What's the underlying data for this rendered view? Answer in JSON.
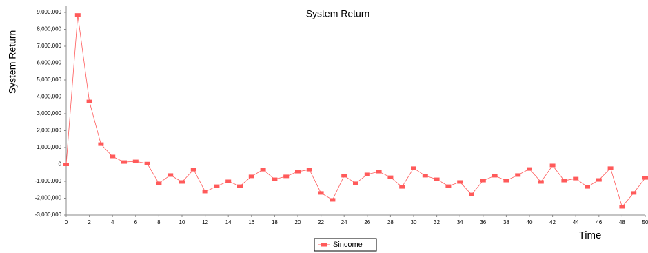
{
  "chart_data": {
    "type": "line",
    "title": "System Return",
    "x_label": "Time",
    "y_label": "System Return",
    "x": [
      0,
      1,
      2,
      3,
      4,
      5,
      6,
      7,
      8,
      9,
      10,
      11,
      12,
      13,
      14,
      15,
      16,
      17,
      18,
      19,
      20,
      21,
      22,
      23,
      24,
      25,
      26,
      27,
      28,
      29,
      30,
      31,
      32,
      33,
      34,
      35,
      36,
      37,
      38,
      39,
      40,
      41,
      42,
      43,
      44,
      45,
      46,
      47,
      48,
      49,
      50
    ],
    "series": [
      {
        "name": "Sincome",
        "color": "#ff5a5a",
        "values": [
          0,
          8850000,
          3730000,
          1200000,
          470000,
          140000,
          180000,
          50000,
          -1120000,
          -630000,
          -1040000,
          -310000,
          -1610000,
          -1290000,
          -1000000,
          -1290000,
          -710000,
          -310000,
          -880000,
          -710000,
          -430000,
          -310000,
          -1690000,
          -2100000,
          -670000,
          -1120000,
          -590000,
          -430000,
          -760000,
          -1330000,
          -220000,
          -670000,
          -880000,
          -1290000,
          -1040000,
          -1780000,
          -960000,
          -670000,
          -960000,
          -630000,
          -270000,
          -1040000,
          -60000,
          -960000,
          -840000,
          -1330000,
          -920000,
          -220000,
          -2510000,
          -1690000,
          -800000
        ]
      }
    ],
    "xlim": [
      0,
      50
    ],
    "xticks": [
      0,
      2,
      4,
      6,
      8,
      10,
      12,
      14,
      16,
      18,
      20,
      22,
      24,
      26,
      28,
      30,
      32,
      34,
      36,
      38,
      40,
      42,
      44,
      46,
      48,
      50
    ],
    "ylim": [
      -3000000,
      9000000
    ],
    "yticks": [
      {
        "value": -3000000,
        "label": "-3,000,000"
      },
      {
        "value": -2000000,
        "label": "-2,000,000"
      },
      {
        "value": -1000000,
        "label": "-1,000,000"
      },
      0,
      {
        "value": 1000000,
        "label": "1,000,000"
      },
      {
        "value": 2000000,
        "label": "2,000,000"
      },
      {
        "value": 3000000,
        "label": "3,000,000"
      },
      {
        "value": 4000000,
        "label": "4,000,000"
      },
      {
        "value": 5000000,
        "label": "5,000,000"
      },
      {
        "value": 6000000,
        "label": "6,000,000"
      },
      {
        "value": 7000000,
        "label": "7,000,000"
      },
      {
        "value": 8000000,
        "label": "8,000,000"
      },
      {
        "value": 9000000,
        "label": "9,000,000"
      }
    ],
    "grid": false
  }
}
